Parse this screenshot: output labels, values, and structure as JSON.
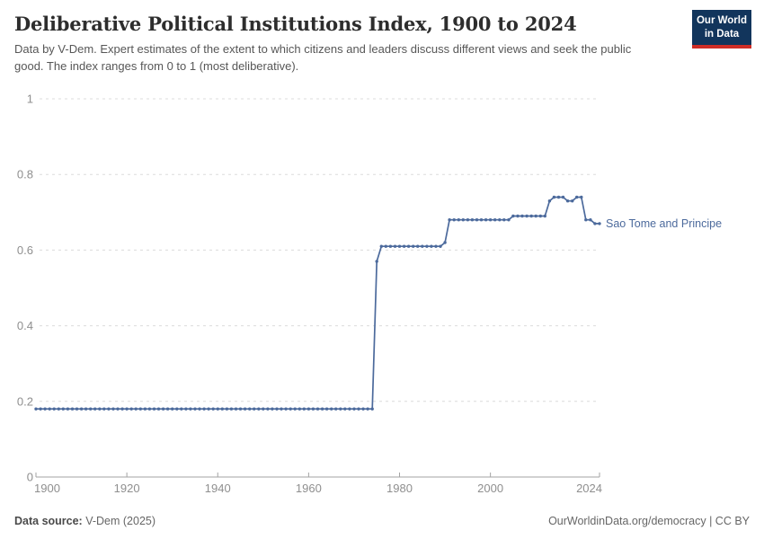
{
  "header": {
    "title": "Deliberative Political Institutions Index, 1900 to 2024",
    "subtitle": "Data by V-Dem. Expert estimates of the extent to which citizens and leaders discuss different views and seek the public good. The index ranges from 0 to 1 (most deliberative).",
    "logo": {
      "line1": "Our World",
      "line2": "in Data",
      "bg_color": "#12355c",
      "stripe_color": "#cf2d26"
    }
  },
  "chart_data": {
    "type": "line",
    "title": "Deliberative Political Institutions Index, 1900 to 2024",
    "xlabel": "",
    "ylabel": "",
    "xlim": [
      1900,
      2024
    ],
    "ylim": [
      0,
      1
    ],
    "x_start": 1900,
    "x_step": 1,
    "x_ticks": [
      1900,
      1920,
      1940,
      1960,
      1980,
      2000,
      2024
    ],
    "y_ticks": [
      0,
      0.2,
      0.4,
      0.6,
      0.8,
      1
    ],
    "grid": "horizontal-dashed",
    "legend_position": "end-of-line-label",
    "colors": {
      "line": "#4c6a9c",
      "gridline": "#dcdcdc",
      "axis": "#a3a3a3",
      "tick_label": "#8f8f8f"
    },
    "series": [
      {
        "name": "Sao Tome and Principe",
        "color": "#4c6a9c",
        "values": [
          0.18,
          0.18,
          0.18,
          0.18,
          0.18,
          0.18,
          0.18,
          0.18,
          0.18,
          0.18,
          0.18,
          0.18,
          0.18,
          0.18,
          0.18,
          0.18,
          0.18,
          0.18,
          0.18,
          0.18,
          0.18,
          0.18,
          0.18,
          0.18,
          0.18,
          0.18,
          0.18,
          0.18,
          0.18,
          0.18,
          0.18,
          0.18,
          0.18,
          0.18,
          0.18,
          0.18,
          0.18,
          0.18,
          0.18,
          0.18,
          0.18,
          0.18,
          0.18,
          0.18,
          0.18,
          0.18,
          0.18,
          0.18,
          0.18,
          0.18,
          0.18,
          0.18,
          0.18,
          0.18,
          0.18,
          0.18,
          0.18,
          0.18,
          0.18,
          0.18,
          0.18,
          0.18,
          0.18,
          0.18,
          0.18,
          0.18,
          0.18,
          0.18,
          0.18,
          0.18,
          0.18,
          0.18,
          0.18,
          0.18,
          0.18,
          0.57,
          0.61,
          0.61,
          0.61,
          0.61,
          0.61,
          0.61,
          0.61,
          0.61,
          0.61,
          0.61,
          0.61,
          0.61,
          0.61,
          0.61,
          0.62,
          0.68,
          0.68,
          0.68,
          0.68,
          0.68,
          0.68,
          0.68,
          0.68,
          0.68,
          0.68,
          0.68,
          0.68,
          0.68,
          0.68,
          0.69,
          0.69,
          0.69,
          0.69,
          0.69,
          0.69,
          0.69,
          0.69,
          0.73,
          0.74,
          0.74,
          0.74,
          0.73,
          0.73,
          0.74,
          0.74,
          0.68,
          0.68,
          0.67,
          0.67
        ]
      }
    ]
  },
  "footer": {
    "source_label": "Data source:",
    "source_value": " V-Dem (2025)",
    "right_text": "OurWorldinData.org/democracy | CC BY"
  }
}
